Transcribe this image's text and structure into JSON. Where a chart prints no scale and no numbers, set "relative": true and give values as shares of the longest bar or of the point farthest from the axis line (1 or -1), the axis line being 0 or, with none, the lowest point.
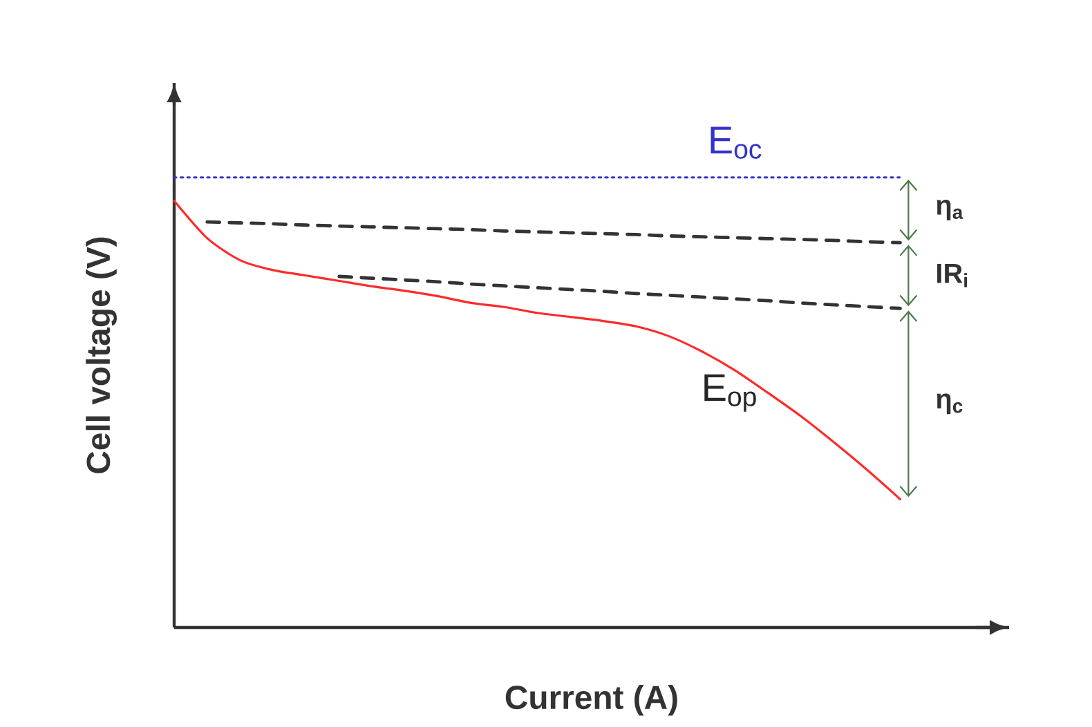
{
  "chart_data": {
    "type": "line",
    "relative": true,
    "xlabel": "Current (A)",
    "ylabel": "Cell voltage (V)",
    "marker": "none",
    "legend": false,
    "categories": [
      null,
      null,
      null,
      null,
      null,
      null,
      null,
      null,
      null,
      null,
      null,
      null,
      null,
      null,
      null,
      null,
      null,
      null,
      null,
      null,
      null,
      null,
      null
    ],
    "series": [
      {
        "name": "E$_{oc}$",
        "color": "#3333cc",
        "line_style": "dotted",
        "values": [
          1,
          1,
          1,
          1,
          1,
          1,
          1,
          1,
          1,
          1,
          1,
          1,
          1,
          1,
          1,
          1,
          1,
          1,
          1,
          1,
          1,
          1,
          1
        ]
      },
      {
        "color": "#333333",
        "line_style": "dashed",
        "values": [
          null,
          0.901,
          0.899,
          0.897,
          0.894,
          0.892,
          0.89,
          0.888,
          0.886,
          0.884,
          0.881,
          0.879,
          0.877,
          0.875,
          0.873,
          0.87,
          0.868,
          0.866,
          0.864,
          0.862,
          0.86,
          0.857,
          0.855
        ]
      },
      {
        "color": "#333333",
        "line_style": "dashed",
        "values": [
          null,
          null,
          null,
          null,
          null,
          0.78,
          0.776,
          0.772,
          0.768,
          0.763,
          0.759,
          0.755,
          0.751,
          0.747,
          0.742,
          0.738,
          0.734,
          0.73,
          0.726,
          0.721,
          0.717,
          0.713,
          0.709
        ]
      },
      {
        "name": "E$_{op}$",
        "color": "#ff2a2a",
        "line_style": "solid",
        "values": [
          0.948,
          0.865,
          0.816,
          0.794,
          0.782,
          0.77,
          0.758,
          0.748,
          0.736,
          0.721,
          0.712,
          0.699,
          0.69,
          0.681,
          0.669,
          0.647,
          0.613,
          0.571,
          0.521,
          0.469,
          0.411,
          0.35,
          0.285
        ]
      }
    ],
    "annotations": [
      "η$_{a}$",
      "IR$_{i}$",
      "η$_{c}$"
    ]
  }
}
